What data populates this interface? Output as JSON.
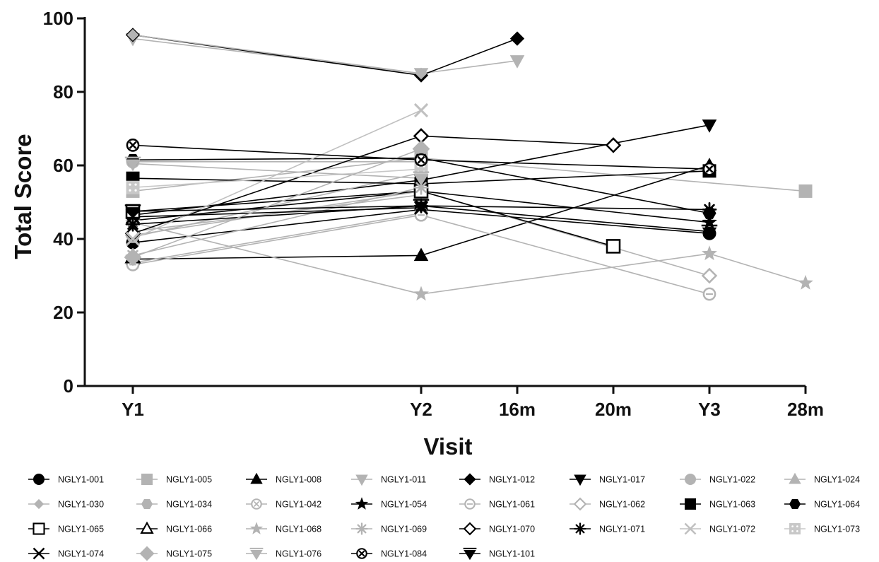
{
  "chart_data": {
    "type": "line",
    "xlabel": "Visit",
    "ylabel": "Total Score",
    "ylim": [
      0,
      100
    ],
    "y_ticks": [
      0,
      20,
      40,
      60,
      80,
      100
    ],
    "x_positions": [
      12,
      24,
      28,
      32,
      36,
      40
    ],
    "x_tick_labels": [
      "Y1",
      "Y2",
      "16m",
      "20m",
      "Y3",
      "28m"
    ],
    "legend_position": "bottom",
    "grid": false,
    "series": [
      {
        "name": "NGLY1-001",
        "color": "#000000",
        "marker": "circle",
        "fill": "filled",
        "x": [
          12,
          24,
          36
        ],
        "y": [
          39,
          48,
          41.5
        ]
      },
      {
        "name": "NGLY1-005",
        "color": "#b3b3b3",
        "marker": "square",
        "fill": "filled",
        "x": [
          12,
          24,
          40
        ],
        "y": [
          53,
          62,
          53
        ]
      },
      {
        "name": "NGLY1-008",
        "color": "#000000",
        "marker": "triangle-up",
        "fill": "filled",
        "x": [
          12,
          24,
          36
        ],
        "y": [
          34.5,
          35.5,
          60
        ]
      },
      {
        "name": "NGLY1-011",
        "color": "#b3b3b3",
        "marker": "triangle-down",
        "fill": "filled",
        "x": [
          12,
          24,
          28
        ],
        "y": [
          94.5,
          85,
          88.5
        ]
      },
      {
        "name": "NGLY1-012",
        "color": "#000000",
        "marker": "diamond",
        "fill": "filled",
        "x": [
          12,
          24,
          28
        ],
        "y": [
          95.5,
          84.5,
          94.5
        ]
      },
      {
        "name": "NGLY1-017",
        "color": "#000000",
        "marker": "triangle-down",
        "fill": "filled",
        "x": [
          12,
          24,
          36
        ],
        "y": [
          46.5,
          56,
          71
        ]
      },
      {
        "name": "NGLY1-022",
        "color": "#b3b3b3",
        "marker": "circle",
        "fill": "filled",
        "x": [
          12,
          24
        ],
        "y": [
          61,
          61
        ]
      },
      {
        "name": "NGLY1-024",
        "color": "#b3b3b3",
        "marker": "triangle-up",
        "fill": "filled",
        "x": [
          12,
          24
        ],
        "y": [
          42,
          52
        ]
      },
      {
        "name": "NGLY1-030",
        "color": "#b3b3b3",
        "marker": "diamond-small",
        "fill": "filled",
        "x": [
          12,
          24
        ],
        "y": [
          95.5,
          85
        ]
      },
      {
        "name": "NGLY1-034",
        "color": "#b3b3b3",
        "marker": "hexagon",
        "fill": "filled",
        "x": [
          12,
          24
        ],
        "y": [
          40.5,
          58
        ]
      },
      {
        "name": "NGLY1-042",
        "color": "#b3b3b3",
        "marker": "circle-cross",
        "fill": "hollow",
        "x": [
          12,
          24
        ],
        "y": [
          33.5,
          47
        ]
      },
      {
        "name": "NGLY1-054",
        "color": "#000000",
        "marker": "star",
        "fill": "filled",
        "x": [
          12,
          24,
          36
        ],
        "y": [
          45,
          53,
          44.5
        ]
      },
      {
        "name": "NGLY1-061",
        "color": "#b3b3b3",
        "marker": "circle-minus",
        "fill": "hollow",
        "x": [
          12,
          24,
          36
        ],
        "y": [
          33,
          46.5,
          25
        ]
      },
      {
        "name": "NGLY1-062",
        "color": "#b3b3b3",
        "marker": "diamond",
        "fill": "hollow",
        "x": [
          12,
          24,
          36
        ],
        "y": [
          41,
          53,
          30
        ]
      },
      {
        "name": "NGLY1-063",
        "color": "#000000",
        "marker": "square",
        "fill": "filled",
        "x": [
          12,
          24,
          36
        ],
        "y": [
          56.5,
          55,
          58.5
        ]
      },
      {
        "name": "NGLY1-064",
        "color": "#000000",
        "marker": "hexagon",
        "fill": "filled",
        "x": [
          12,
          24,
          36
        ],
        "y": [
          61.5,
          62,
          47
        ]
      },
      {
        "name": "NGLY1-065",
        "color": "#000000",
        "marker": "square",
        "fill": "hollow",
        "x": [
          12,
          24,
          32
        ],
        "y": [
          47.5,
          53,
          38
        ]
      },
      {
        "name": "NGLY1-066",
        "color": "#000000",
        "marker": "triangle-up",
        "fill": "hollow",
        "x": [
          12
        ],
        "y": [
          35
        ]
      },
      {
        "name": "NGLY1-068",
        "color": "#b3b3b3",
        "marker": "star",
        "fill": "filled",
        "x": [
          12,
          24,
          36,
          40
        ],
        "y": [
          44.5,
          25,
          36,
          28
        ]
      },
      {
        "name": "NGLY1-069",
        "color": "#b3b3b3",
        "marker": "asterisk",
        "fill": "filled",
        "x": [
          12,
          24
        ],
        "y": [
          35.5,
          54
        ]
      },
      {
        "name": "NGLY1-070",
        "color": "#000000",
        "marker": "diamond",
        "fill": "hollow",
        "x": [
          12,
          24,
          32
        ],
        "y": [
          41.5,
          68,
          65.5
        ]
      },
      {
        "name": "NGLY1-071",
        "color": "#000000",
        "marker": "asterisk",
        "fill": "filled",
        "x": [
          12,
          24,
          36
        ],
        "y": [
          44,
          49,
          48
        ]
      },
      {
        "name": "NGLY1-072",
        "color": "#c0c0c0",
        "marker": "x",
        "fill": "filled",
        "x": [
          12,
          24
        ],
        "y": [
          40,
          75
        ]
      },
      {
        "name": "NGLY1-073",
        "color": "#c8c8c8",
        "marker": "square-dots",
        "fill": "filled",
        "x": [
          12,
          24
        ],
        "y": [
          54,
          59
        ]
      },
      {
        "name": "NGLY1-074",
        "color": "#000000",
        "marker": "x",
        "fill": "filled",
        "x": [
          12,
          24
        ],
        "y": [
          46,
          48.5
        ]
      },
      {
        "name": "NGLY1-075",
        "color": "#b3b3b3",
        "marker": "diamond-large",
        "fill": "filled",
        "x": [
          12,
          24
        ],
        "y": [
          35,
          64.5
        ]
      },
      {
        "name": "NGLY1-076",
        "color": "#b3b3b3",
        "marker": "triangle-down-bar",
        "fill": "filled",
        "x": [
          12,
          24
        ],
        "y": [
          60.5,
          56.5
        ]
      },
      {
        "name": "NGLY1-084",
        "color": "#000000",
        "marker": "circle-x",
        "fill": "hollow",
        "x": [
          12,
          24,
          36
        ],
        "y": [
          65.5,
          61.5,
          59
        ]
      },
      {
        "name": "NGLY1-101",
        "color": "#000000",
        "marker": "triangle-down-bar",
        "fill": "filled",
        "x": [
          12,
          24,
          36
        ],
        "y": [
          47.5,
          49,
          42
        ]
      }
    ]
  }
}
